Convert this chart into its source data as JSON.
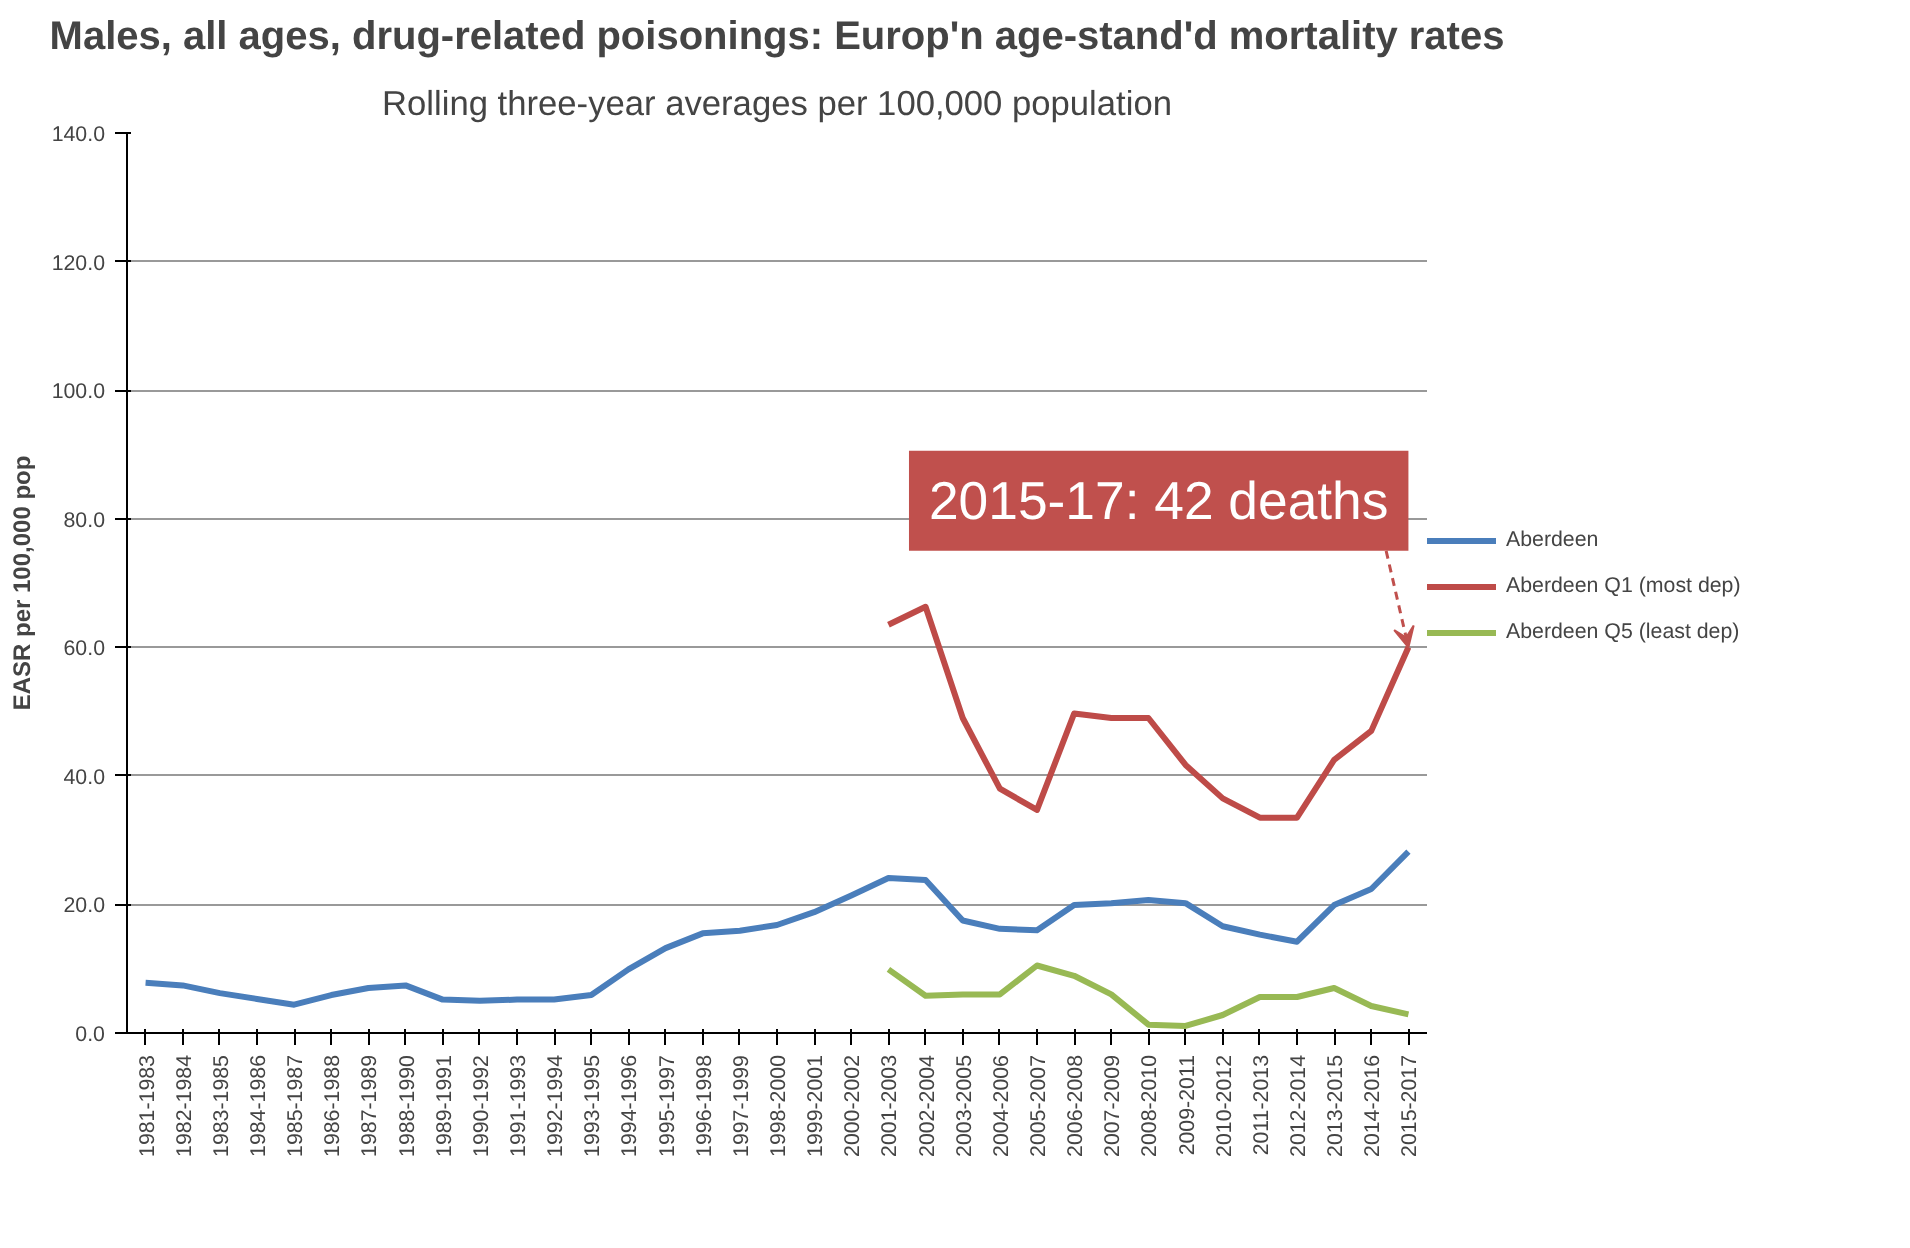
{
  "chart_data": {
    "type": "line",
    "title": "Males, all ages, drug-related poisonings: Europ'n age-stand'd mortality rates",
    "subtitle": "Rolling three-year averages per 100,000 population",
    "ylabel": "EASR per 100,000 pop",
    "categories": [
      "1981-1983",
      "1982-1984",
      "1983-1985",
      "1984-1986",
      "1985-1987",
      "1986-1988",
      "1987-1989",
      "1988-1990",
      "1989-1991",
      "1990-1992",
      "1991-1993",
      "1992-1994",
      "1993-1995",
      "1994-1996",
      "1995-1997",
      "1996-1998",
      "1997-1999",
      "1998-2000",
      "1999-2001",
      "2000-2002",
      "2001-2003",
      "2002-2004",
      "2003-2005",
      "2004-2006",
      "2005-2007",
      "2006-2008",
      "2007-2009",
      "2008-2010",
      "2009-2011",
      "2010-2012",
      "2011-2013",
      "2012-2014",
      "2013-2015",
      "2014-2016",
      "2015-2017"
    ],
    "series": [
      {
        "name": "Aberdeen",
        "color": "#4a7ebb",
        "values": [
          7.8,
          7.4,
          6.2,
          5.3,
          4.4,
          5.9,
          7.0,
          7.4,
          5.2,
          5.0,
          5.2,
          5.2,
          5.9,
          9.9,
          13.2,
          15.5,
          15.9,
          16.8,
          18.8,
          21.4,
          24.1,
          23.8,
          17.5,
          16.2,
          16.0,
          19.9,
          20.2,
          20.7,
          20.2,
          16.6,
          15.3,
          14.2,
          19.9,
          22.4,
          28.2
        ]
      },
      {
        "name": "Aberdeen Q1 (most dep)",
        "color": "#be4b48",
        "values": [
          null,
          null,
          null,
          null,
          null,
          null,
          null,
          null,
          null,
          null,
          null,
          null,
          null,
          null,
          null,
          null,
          null,
          null,
          null,
          null,
          63.5,
          66.3,
          49.0,
          38.0,
          34.7,
          49.7,
          49.0,
          49.0,
          41.7,
          36.5,
          33.5,
          33.5,
          42.5,
          47.0,
          60.0
        ]
      },
      {
        "name": "Aberdeen Q5 (least dep)",
        "color": "#98b954",
        "values": [
          null,
          null,
          null,
          null,
          null,
          null,
          null,
          null,
          null,
          null,
          null,
          null,
          null,
          null,
          null,
          null,
          null,
          null,
          null,
          null,
          9.9,
          5.8,
          6.0,
          6.0,
          10.5,
          8.9,
          6.0,
          1.3,
          1.1,
          2.8,
          5.6,
          5.6,
          7.0,
          4.2,
          2.9
        ]
      }
    ],
    "ylim": [
      0,
      140
    ],
    "yticks": [
      {
        "value": 0,
        "label": "0.0"
      },
      {
        "value": 20,
        "label": "20.0"
      },
      {
        "value": 40,
        "label": "40.0"
      },
      {
        "value": 60,
        "label": "60.0"
      },
      {
        "value": 80,
        "label": "80.0"
      },
      {
        "value": 100,
        "label": "100.0"
      },
      {
        "value": 120,
        "label": "120.0"
      },
      {
        "value": 140,
        "label": "140.0"
      }
    ],
    "grid": "y",
    "legend": "right",
    "marker": "none",
    "line_style": "solid",
    "annotations": [
      {
        "text": "2015-17: 42 deaths",
        "x": "2015-2017",
        "y": 60
      }
    ]
  }
}
